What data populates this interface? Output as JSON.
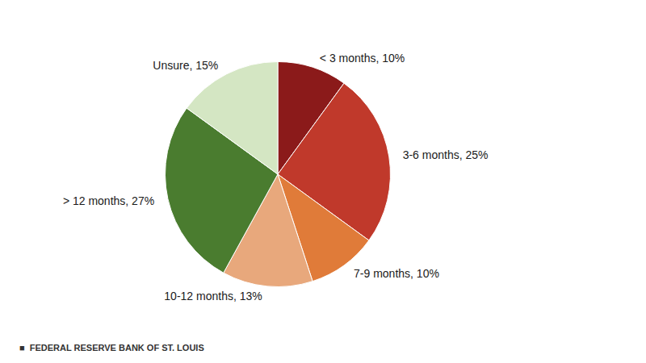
{
  "chart_data": {
    "type": "pie",
    "categories": [
      "< 3 months",
      "3-6 months",
      "7-9 months",
      "10-12 months",
      "> 12 months",
      "Unsure"
    ],
    "values": [
      10,
      25,
      10,
      13,
      27,
      15
    ],
    "value_labels": [
      "< 3 months, 10%",
      "3-6 months, 25%",
      "7-9 months, 10%",
      "10-12 months, 13%",
      "> 12 months, 27%",
      "Unsure, 15%"
    ],
    "colors": [
      "#8B1A1A",
      "#C0392B",
      "#E07B39",
      "#E8A87C",
      "#4A7C2F",
      "#D4E6C3"
    ],
    "data_labels": true,
    "legend": false,
    "annotations": [
      "■  FEDERAL RESERVE BANK OF ST. LOUIS"
    ]
  }
}
